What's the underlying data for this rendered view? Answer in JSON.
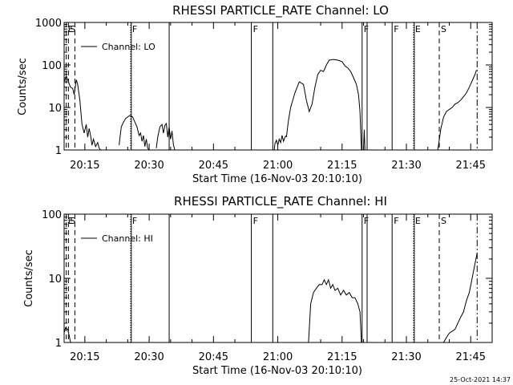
{
  "footer_timestamp": "25-Oct-2021 14:37",
  "colors": {
    "background": "#ffffff",
    "ink": "#000000"
  },
  "chart_data": [
    {
      "type": "line",
      "title": "RHESSI PARTICLE_RATE Channel: LO",
      "xlabel": "Start Time (16-Nov-03 20:10:10)",
      "ylabel": "Counts/sec",
      "yscale": "log",
      "xlim": [
        "20:10:10",
        "21:50:00"
      ],
      "ylim": [
        1,
        1000
      ],
      "xticks": [
        "20:15",
        "20:30",
        "20:45",
        "21:00",
        "21:15",
        "21:30",
        "21:45"
      ],
      "yticks": [
        "1",
        "10",
        "100",
        "1000"
      ],
      "legend": {
        "position": "top-left",
        "entries": [
          "Channel: LO"
        ]
      },
      "grid": false,
      "markers": [
        {
          "time": "20:10:40",
          "label": "E",
          "style": "dashed"
        },
        {
          "time": "20:11:10",
          "label": "S",
          "style": "dashed"
        },
        {
          "time": "20:12:40",
          "label": "",
          "style": "dashed"
        },
        {
          "time": "20:25:40",
          "label": "F",
          "style": "dotted"
        },
        {
          "time": "20:25:50",
          "label": "",
          "style": "solid"
        },
        {
          "time": "20:34:40",
          "label": "",
          "style": "solid"
        },
        {
          "time": "20:53:50",
          "label": "F",
          "style": "solid"
        },
        {
          "time": "20:58:50",
          "label": "",
          "style": "solid"
        },
        {
          "time": "21:19:40",
          "label": "F",
          "style": "solid"
        },
        {
          "time": "21:20:50",
          "label": "",
          "style": "solid"
        },
        {
          "time": "21:26:40",
          "label": "F",
          "style": "solid"
        },
        {
          "time": "21:31:40",
          "label": "E",
          "style": "dotted"
        },
        {
          "time": "21:31:50",
          "label": "",
          "style": "solid"
        },
        {
          "time": "21:37:40",
          "label": "S",
          "style": "dashed"
        },
        {
          "time": "21:46:30",
          "label": "",
          "style": "dashdot"
        }
      ],
      "series": [
        {
          "name": "Channel: LO",
          "segments": [
            {
              "times": [
                "20:10:10",
                "20:10:40",
                "20:11:10",
                "20:11:40",
                "20:12:10",
                "20:12:30",
                "20:13:00",
                "20:13:20",
                "20:13:50",
                "20:14:20",
                "20:14:50",
                "20:15:20",
                "20:15:40",
                "20:16:00",
                "20:16:20",
                "20:16:40",
                "20:17:00",
                "20:17:30",
                "20:18:00",
                "20:18:20",
                "20:18:40"
              ],
              "values": [
                40,
                55,
                40,
                30,
                28,
                20,
                45,
                35,
                15,
                4,
                2.5,
                4,
                2,
                3.2,
                2.2,
                1.3,
                1.8,
                1.2,
                1.5,
                1.1,
                1
              ]
            },
            {
              "times": [
                "20:23:00",
                "20:23:30",
                "20:24:00",
                "20:24:30",
                "20:25:00",
                "20:25:30",
                "20:26:10",
                "20:26:40",
                "20:27:10",
                "20:27:40",
                "20:28:00",
                "20:28:20",
                "20:28:40",
                "20:29:00",
                "20:29:20",
                "20:29:40",
                "20:30:00"
              ],
              "values": [
                1.3,
                3.5,
                4.5,
                5.5,
                6,
                6.5,
                6,
                4.5,
                3.5,
                2.2,
                2.5,
                1.6,
                2.2,
                1.2,
                1.8,
                1.1,
                1
              ]
            },
            {
              "times": [
                "20:31:40",
                "20:32:00",
                "20:32:30",
                "20:33:00",
                "20:33:20",
                "20:33:40",
                "20:34:00",
                "20:34:20",
                "20:34:40",
                "20:35:00",
                "20:35:20",
                "20:35:40",
                "20:36:00"
              ],
              "values": [
                1.1,
                2,
                3.5,
                4,
                2.5,
                3.8,
                4.2,
                2,
                3.5,
                1.8,
                2.8,
                1.3,
                1
              ]
            },
            {
              "times": [
                "20:59:10",
                "20:59:20",
                "20:59:40",
                "21:00:00",
                "21:00:20",
                "21:00:40",
                "21:01:00",
                "21:01:20",
                "21:01:40",
                "21:02:00"
              ],
              "values": [
                1,
                1.4,
                1.7,
                1.3,
                1.8,
                1.5,
                2.2,
                1.6,
                2,
                2.2
              ]
            },
            {
              "times": [
                "21:02:00",
                "21:02:30",
                "21:03:00",
                "21:04:00",
                "21:05:00",
                "21:06:00",
                "21:06:40",
                "21:07:20",
                "21:08:00",
                "21:08:40",
                "21:09:20",
                "21:10:00",
                "21:10:40",
                "21:11:20",
                "21:12:00",
                "21:13:00",
                "21:14:00",
                "21:15:00",
                "21:15:40",
                "21:16:20",
                "21:17:00",
                "21:17:40",
                "21:18:20",
                "21:18:50",
                "21:19:10",
                "21:19:30"
              ],
              "values": [
                2,
                5,
                10,
                22,
                40,
                35,
                15,
                8,
                12,
                30,
                60,
                75,
                70,
                100,
                130,
                135,
                130,
                120,
                95,
                85,
                70,
                50,
                35,
                20,
                8,
                1
              ]
            },
            {
              "times": [
                "21:20:00",
                "21:20:10",
                "21:20:20"
              ],
              "values": [
                1,
                3,
                1
              ]
            },
            {
              "times": [
                "21:37:20",
                "21:38:00",
                "21:38:40",
                "21:39:20",
                "21:40:00",
                "21:40:40",
                "21:41:20",
                "21:42:00",
                "21:42:40",
                "21:43:20",
                "21:44:00",
                "21:44:40",
                "21:45:20",
                "21:46:00",
                "21:46:20"
              ],
              "values": [
                1,
                3,
                6,
                8,
                9,
                10,
                12,
                13,
                15,
                18,
                22,
                30,
                42,
                60,
                75
              ]
            }
          ]
        }
      ]
    },
    {
      "type": "line",
      "title": "RHESSI PARTICLE_RATE Channel: HI",
      "xlabel": "Start Time (16-Nov-03 20:10:10)",
      "ylabel": "Counts/sec",
      "yscale": "log",
      "xlim": [
        "20:10:10",
        "21:50:00"
      ],
      "ylim": [
        1,
        100
      ],
      "xticks": [
        "20:15",
        "20:30",
        "20:45",
        "21:00",
        "21:15",
        "21:30",
        "21:45"
      ],
      "yticks": [
        "1",
        "10",
        "100"
      ],
      "legend": {
        "position": "top-left",
        "entries": [
          "Channel: HI"
        ]
      },
      "grid": false,
      "markers": [
        {
          "time": "20:10:40",
          "label": "E",
          "style": "dashed"
        },
        {
          "time": "20:11:10",
          "label": "S",
          "style": "dashed"
        },
        {
          "time": "20:12:40",
          "label": "",
          "style": "dashed"
        },
        {
          "time": "20:25:40",
          "label": "F",
          "style": "dotted"
        },
        {
          "time": "20:25:50",
          "label": "",
          "style": "solid"
        },
        {
          "time": "20:34:40",
          "label": "",
          "style": "solid"
        },
        {
          "time": "20:53:50",
          "label": "F",
          "style": "solid"
        },
        {
          "time": "20:58:50",
          "label": "",
          "style": "solid"
        },
        {
          "time": "21:19:40",
          "label": "F",
          "style": "solid"
        },
        {
          "time": "21:20:50",
          "label": "",
          "style": "solid"
        },
        {
          "time": "21:26:40",
          "label": "F",
          "style": "solid"
        },
        {
          "time": "21:31:40",
          "label": "E",
          "style": "dotted"
        },
        {
          "time": "21:31:50",
          "label": "",
          "style": "solid"
        },
        {
          "time": "21:37:40",
          "label": "S",
          "style": "dashed"
        },
        {
          "time": "21:46:30",
          "label": "",
          "style": "dashdot"
        }
      ],
      "series": [
        {
          "name": "Channel: HI",
          "segments": [
            {
              "times": [
                "20:10:10",
                "20:10:30",
                "20:11:00",
                "20:11:20",
                "20:11:40"
              ],
              "values": [
                1.4,
                1.7,
                1.6,
                1.3,
                1
              ]
            },
            {
              "times": [
                "21:07:10",
                "21:07:40",
                "21:08:20",
                "21:09:00",
                "21:09:40",
                "21:10:20",
                "21:10:50",
                "21:11:20",
                "21:11:50",
                "21:12:20",
                "21:12:50",
                "21:13:20",
                "21:14:00",
                "21:14:40",
                "21:15:20",
                "21:16:00",
                "21:16:40",
                "21:17:20",
                "21:18:00",
                "21:18:40",
                "21:19:10",
                "21:19:30"
              ],
              "values": [
                1,
                4,
                6,
                7,
                8,
                8,
                9.5,
                8,
                9.5,
                7,
                8,
                6.5,
                7,
                5.5,
                6.5,
                5.5,
                6,
                5,
                5,
                4,
                3,
                1
              ]
            },
            {
              "times": [
                "21:38:40",
                "21:39:20",
                "21:40:00",
                "21:40:40",
                "21:41:20",
                "21:42:00",
                "21:42:40",
                "21:43:20",
                "21:44:00",
                "21:44:40",
                "21:45:20",
                "21:46:00",
                "21:46:30"
              ],
              "values": [
                1,
                1.2,
                1.4,
                1.5,
                1.6,
                2,
                2.5,
                3,
                4.5,
                6,
                10,
                17,
                25
              ]
            }
          ]
        }
      ]
    }
  ]
}
